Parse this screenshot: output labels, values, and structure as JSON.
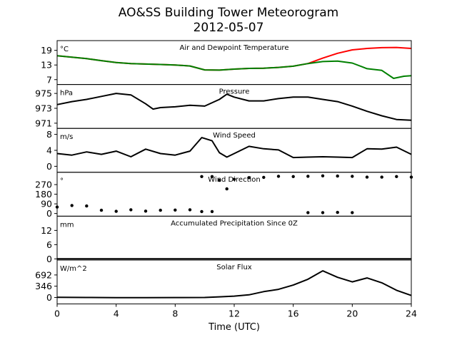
{
  "figure": {
    "title_line1": "AO&SS Building Tower Meteorogram",
    "title_line2": "2012-05-07",
    "xlabel": "Time (UTC)",
    "xticks": [
      0,
      4,
      8,
      12,
      16,
      20,
      24
    ],
    "xlim": [
      0,
      24
    ]
  },
  "colors": {
    "temperature": "#ff0000",
    "dewpoint": "#008000",
    "default": "#000000"
  },
  "chart_data": [
    {
      "type": "line",
      "title": "Air and Dewpoint Temperature",
      "unit": "°C",
      "ylim": [
        5,
        23
      ],
      "yticks": [
        7,
        13,
        19
      ],
      "series": [
        {
          "name": "",
          "color": "#ff0000",
          "points": [
            [
              0,
              16.8
            ],
            [
              1,
              16.2
            ],
            [
              2,
              15.6
            ],
            [
              3,
              14.8
            ],
            [
              4,
              14
            ],
            [
              5,
              13.6
            ],
            [
              6,
              13.4
            ],
            [
              7,
              13.2
            ],
            [
              8,
              13
            ],
            [
              9,
              12.6
            ],
            [
              10,
              11
            ],
            [
              11,
              10.9
            ],
            [
              12,
              11.3
            ],
            [
              13,
              11.6
            ],
            [
              14,
              11.7
            ],
            [
              15,
              12
            ],
            [
              16,
              12.5
            ],
            [
              17,
              13.6
            ],
            [
              18,
              15.8
            ],
            [
              19,
              17.8
            ],
            [
              20,
              19.2
            ],
            [
              21,
              19.8
            ],
            [
              22,
              20.1
            ],
            [
              23,
              20.2
            ],
            [
              24,
              19.8
            ]
          ]
        },
        {
          "name": "",
          "color": "#008000",
          "points": [
            [
              0,
              16.8
            ],
            [
              1,
              16.2
            ],
            [
              2,
              15.6
            ],
            [
              3,
              14.8
            ],
            [
              4,
              14
            ],
            [
              5,
              13.6
            ],
            [
              6,
              13.4
            ],
            [
              7,
              13.2
            ],
            [
              8,
              13
            ],
            [
              9,
              12.6
            ],
            [
              10,
              11
            ],
            [
              11,
              10.9
            ],
            [
              12,
              11.3
            ],
            [
              13,
              11.6
            ],
            [
              14,
              11.7
            ],
            [
              15,
              12
            ],
            [
              16,
              12.5
            ],
            [
              17,
              13.6
            ],
            [
              18,
              14.4
            ],
            [
              19,
              14.6
            ],
            [
              20,
              13.8
            ],
            [
              21,
              11.5
            ],
            [
              22,
              10.8
            ],
            [
              22.8,
              7.5
            ],
            [
              23.5,
              8.4
            ],
            [
              24,
              8.6
            ]
          ]
        }
      ]
    },
    {
      "type": "line",
      "title": "Pressure",
      "unit": "hPa",
      "ylim": [
        970.3,
        976.2
      ],
      "yticks": [
        971,
        973,
        975
      ],
      "series": [
        {
          "name": "",
          "color": "#000000",
          "points": [
            [
              0,
              973.5
            ],
            [
              1,
              973.9
            ],
            [
              2,
              974.2
            ],
            [
              3,
              974.6
            ],
            [
              4,
              975
            ],
            [
              5,
              974.8
            ],
            [
              6,
              973.6
            ],
            [
              6.5,
              972.9
            ],
            [
              7,
              973.1
            ],
            [
              8,
              973.2
            ],
            [
              9,
              973.4
            ],
            [
              10,
              973.3
            ],
            [
              11,
              974.2
            ],
            [
              11.5,
              974.9
            ],
            [
              12,
              974.5
            ],
            [
              13,
              974
            ],
            [
              14,
              974
            ],
            [
              15,
              974.3
            ],
            [
              16,
              974.5
            ],
            [
              17,
              974.5
            ],
            [
              18,
              974.2
            ],
            [
              19,
              973.9
            ],
            [
              20,
              973.3
            ],
            [
              21,
              972.6
            ],
            [
              22,
              972
            ],
            [
              23,
              971.5
            ],
            [
              24,
              971.4
            ]
          ]
        }
      ]
    },
    {
      "type": "line",
      "title": "Wind Speed",
      "unit": "m/s",
      "ylim": [
        -1.5,
        9.5
      ],
      "yticks": [
        0,
        4,
        8
      ],
      "series": [
        {
          "name": "",
          "color": "#000000",
          "points": [
            [
              0,
              3.2
            ],
            [
              1,
              2.8
            ],
            [
              2,
              3.6
            ],
            [
              3,
              3
            ],
            [
              4,
              3.8
            ],
            [
              5,
              2.4
            ],
            [
              6,
              4.3
            ],
            [
              7,
              3.2
            ],
            [
              8,
              2.8
            ],
            [
              9,
              3.8
            ],
            [
              9.8,
              7.2
            ],
            [
              10.5,
              6.4
            ],
            [
              11,
              3.4
            ],
            [
              11.5,
              2.3
            ],
            [
              12,
              3.2
            ],
            [
              13,
              5
            ],
            [
              14,
              4.4
            ],
            [
              15,
              4.1
            ],
            [
              16,
              2.2
            ],
            [
              17,
              2.3
            ],
            [
              18,
              2.4
            ],
            [
              19,
              2.3
            ],
            [
              20,
              2.2
            ],
            [
              21,
              4.4
            ],
            [
              22,
              4.3
            ],
            [
              23,
              4.8
            ],
            [
              24,
              3
            ]
          ]
        }
      ]
    },
    {
      "type": "scatter",
      "title": "Wind Direction",
      "unit": "°",
      "ylim": [
        -25,
        385
      ],
      "yticks": [
        0,
        90,
        180,
        270
      ],
      "series": [
        {
          "name": "",
          "color": "#000000",
          "points": [
            [
              0,
              60
            ],
            [
              1,
              75
            ],
            [
              2,
              70
            ],
            [
              3,
              30
            ],
            [
              4,
              20
            ],
            [
              5,
              35
            ],
            [
              6,
              22
            ],
            [
              7,
              30
            ],
            [
              8,
              32
            ],
            [
              9,
              35
            ],
            [
              9.8,
              18
            ],
            [
              10.5,
              18
            ],
            [
              9.8,
              345
            ],
            [
              10.5,
              345
            ],
            [
              11,
              310
            ],
            [
              11.5,
              230
            ],
            [
              12,
              320
            ],
            [
              13,
              335
            ],
            [
              14,
              338
            ],
            [
              15,
              348
            ],
            [
              16,
              345
            ],
            [
              17,
              348
            ],
            [
              18,
              352
            ],
            [
              19,
              350
            ],
            [
              20,
              347
            ],
            [
              21,
              340
            ],
            [
              22,
              340
            ],
            [
              23,
              345
            ],
            [
              24,
              340
            ],
            [
              17,
              8
            ],
            [
              18,
              8
            ],
            [
              19,
              10
            ],
            [
              20,
              8
            ]
          ]
        }
      ]
    },
    {
      "type": "line",
      "title": "Accumulated Precipitation Since 0Z",
      "unit": "mm",
      "ylim": [
        -0.5,
        18
      ],
      "yticks": [
        0,
        6,
        12
      ],
      "series": [
        {
          "name": "",
          "color": "#000000",
          "points": [
            [
              0,
              0
            ],
            [
              24,
              0
            ]
          ]
        }
      ]
    },
    {
      "type": "line",
      "title": "Solar Flux",
      "unit": "W/m^2",
      "ylim": [
        -200,
        1150
      ],
      "yticks": [
        0,
        346,
        692
      ],
      "series": [
        {
          "name": "",
          "color": "#000000",
          "points": [
            [
              0,
              5
            ],
            [
              2,
              0
            ],
            [
              4,
              -5
            ],
            [
              6,
              -5
            ],
            [
              8,
              -3
            ],
            [
              10,
              0
            ],
            [
              11,
              20
            ],
            [
              12,
              40
            ],
            [
              13,
              80
            ],
            [
              14,
              180
            ],
            [
              15,
              250
            ],
            [
              16,
              380
            ],
            [
              17,
              560
            ],
            [
              18,
              820
            ],
            [
              19,
              620
            ],
            [
              20,
              480
            ],
            [
              21,
              600
            ],
            [
              22,
              450
            ],
            [
              23,
              220
            ],
            [
              24,
              60
            ]
          ]
        }
      ]
    }
  ]
}
